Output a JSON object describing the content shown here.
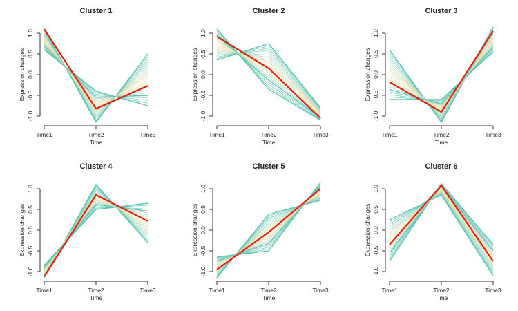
{
  "chart_data": [
    {
      "type": "line",
      "title": "Cluster 1",
      "xlabel": "Time",
      "ylabel": "Expression changes",
      "categories": [
        "Time1",
        "Time2",
        "Time3"
      ],
      "yticks": [
        "-1.0",
        "-0.5",
        "0.0",
        "0.5",
        "1.0"
      ],
      "ylim": [
        -1.2,
        1.2
      ],
      "centroid": [
        1.1,
        -0.82,
        -0.27
      ],
      "members": [
        [
          1.1,
          -1.15,
          0.5
        ],
        [
          1.0,
          -1.0,
          0.25
        ],
        [
          0.9,
          -0.85,
          0.0
        ],
        [
          0.8,
          -0.7,
          -0.25
        ],
        [
          0.7,
          -0.55,
          -0.5
        ],
        [
          0.6,
          -0.4,
          -0.75
        ]
      ]
    },
    {
      "type": "line",
      "title": "Cluster 2",
      "xlabel": "Time",
      "ylabel": "Expression changes",
      "categories": [
        "Time1",
        "Time2",
        "Time3"
      ],
      "yticks": [
        "-1.0",
        "-0.5",
        "0.0",
        "0.5",
        "1.0"
      ],
      "ylim": [
        -1.2,
        1.2
      ],
      "centroid": [
        0.92,
        0.15,
        -1.05
      ],
      "members": [
        [
          0.35,
          0.75,
          -0.8
        ],
        [
          0.5,
          0.53,
          -0.86
        ],
        [
          0.65,
          0.31,
          -0.92
        ],
        [
          0.8,
          0.09,
          -0.98
        ],
        [
          0.95,
          -0.13,
          -1.04
        ],
        [
          1.1,
          -0.35,
          -1.1
        ]
      ]
    },
    {
      "type": "line",
      "title": "Cluster 3",
      "xlabel": "Time",
      "ylabel": "Expression changes",
      "categories": [
        "Time1",
        "Time2",
        "Time3"
      ],
      "yticks": [
        "-1.0",
        "-0.5",
        "0.0",
        "0.5",
        "1.0"
      ],
      "ylim": [
        -1.2,
        1.2
      ],
      "centroid": [
        -0.18,
        -0.9,
        1.05
      ],
      "members": [
        [
          0.6,
          -1.15,
          1.15
        ],
        [
          0.36,
          -1.04,
          1.03
        ],
        [
          0.12,
          -0.93,
          0.91
        ],
        [
          -0.12,
          -0.82,
          0.79
        ],
        [
          -0.36,
          -0.71,
          0.67
        ],
        [
          -0.6,
          -0.6,
          0.55
        ]
      ]
    },
    {
      "type": "line",
      "title": "Cluster 4",
      "xlabel": "Time",
      "ylabel": "Expression changes",
      "categories": [
        "Time1",
        "Time2",
        "Time3"
      ],
      "yticks": [
        "-1.0",
        "-0.5",
        "0.0",
        "0.5",
        "1.0"
      ],
      "ylim": [
        -1.2,
        1.2
      ],
      "centroid": [
        -1.12,
        0.85,
        0.22
      ],
      "members": [
        [
          -1.15,
          1.1,
          -0.3
        ],
        [
          -1.09,
          0.98,
          -0.11
        ],
        [
          -1.03,
          0.86,
          0.08
        ],
        [
          -0.97,
          0.74,
          0.27
        ],
        [
          -0.91,
          0.62,
          0.46
        ],
        [
          -0.85,
          0.5,
          0.65
        ]
      ]
    },
    {
      "type": "line",
      "title": "Cluster 5",
      "xlabel": "Time",
      "ylabel": "Expression changes",
      "categories": [
        "Time1",
        "Time2",
        "Time3"
      ],
      "yticks": [
        "-1.0",
        "-0.5",
        "0.0",
        "0.5",
        "1.0"
      ],
      "ylim": [
        -1.2,
        1.2
      ],
      "centroid": [
        -0.95,
        -0.05,
        1.0
      ],
      "members": [
        [
          -1.15,
          0.38,
          0.72
        ],
        [
          -1.05,
          0.2,
          0.81
        ],
        [
          -0.95,
          0.03,
          0.89
        ],
        [
          -0.85,
          -0.15,
          0.98
        ],
        [
          -0.75,
          -0.32,
          1.06
        ],
        [
          -0.65,
          -0.5,
          1.15
        ]
      ]
    },
    {
      "type": "line",
      "title": "Cluster 6",
      "xlabel": "Time",
      "ylabel": "Expression changes",
      "categories": [
        "Time1",
        "Time2",
        "Time3"
      ],
      "yticks": [
        "-1.0",
        "-0.5",
        "0.0",
        "0.5",
        "1.0"
      ],
      "ylim": [
        -1.2,
        1.2
      ],
      "centroid": [
        -0.35,
        1.08,
        -0.75
      ],
      "members": [
        [
          0.25,
          0.85,
          -1.1
        ],
        [
          0.05,
          0.9,
          -0.95
        ],
        [
          -0.15,
          0.96,
          -0.8
        ],
        [
          -0.35,
          1.01,
          -0.65
        ],
        [
          -0.55,
          1.07,
          -0.5
        ],
        [
          -0.75,
          1.12,
          -0.35
        ]
      ]
    }
  ],
  "colors": {
    "member_dark": "#4fbfae",
    "member_light": "#c9ebe5",
    "member_mid": "#f3e4b4",
    "centroid": "#e3200f",
    "axis": "#333333"
  }
}
